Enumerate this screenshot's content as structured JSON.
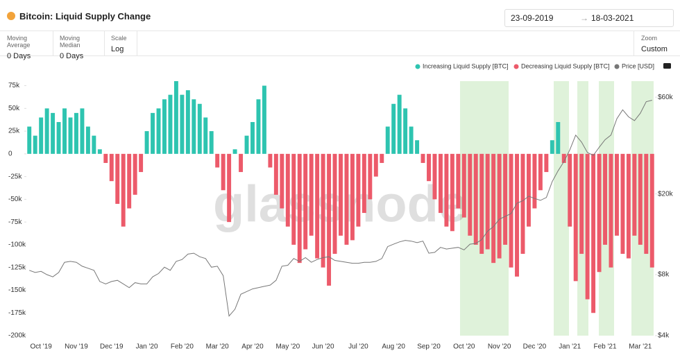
{
  "ui": {
    "title": "Bitcoin: Liquid Supply Change",
    "date_from": "23-09-2019",
    "date_to": "18-03-2021",
    "controls": [
      {
        "label": "Moving Average",
        "value": "0 Days"
      },
      {
        "label": "Moving Median",
        "value": "0 Days"
      },
      {
        "label": "Scale",
        "value": "Log"
      },
      {
        "label": "Zoom",
        "value": "Custom"
      }
    ],
    "watermark": "glassnode"
  },
  "chart_data": {
    "type": "bar",
    "categories": [
      null,
      null,
      "Oct '19",
      null,
      null,
      null,
      null,
      null,
      "Nov '19",
      null,
      null,
      null,
      null,
      null,
      "Dec '19",
      null,
      null,
      null,
      null,
      null,
      "Jan '20",
      null,
      null,
      null,
      null,
      null,
      "Feb '20",
      null,
      null,
      null,
      null,
      null,
      "Mar '20",
      null,
      null,
      null,
      null,
      null,
      "Apr '20",
      null,
      null,
      null,
      null,
      null,
      "May '20",
      null,
      null,
      null,
      null,
      null,
      "Jun '20",
      null,
      null,
      null,
      null,
      null,
      "Jul '20",
      null,
      null,
      null,
      null,
      null,
      "Aug '20",
      null,
      null,
      null,
      null,
      null,
      "Sep '20",
      null,
      null,
      null,
      null,
      null,
      "Oct '20",
      null,
      null,
      null,
      null,
      null,
      "Nov '20",
      null,
      null,
      null,
      null,
      null,
      "Dec '20",
      null,
      null,
      null,
      null,
      null,
      "Jan '21",
      null,
      null,
      null,
      null,
      null,
      "Feb '21",
      null,
      null,
      null,
      null,
      null,
      "Mar '21",
      null,
      null
    ],
    "series": [
      {
        "name": "Increasing Liquid Supply [BTC]",
        "color": "#2ec4b0",
        "values": [
          30000,
          20000,
          40000,
          50000,
          45000,
          35000,
          50000,
          40000,
          45000,
          50000,
          30000,
          20000,
          5000,
          null,
          null,
          null,
          null,
          null,
          null,
          null,
          25000,
          45000,
          50000,
          60000,
          65000,
          80000,
          65000,
          70000,
          60000,
          55000,
          40000,
          25000,
          null,
          null,
          null,
          5000,
          null,
          20000,
          35000,
          60000,
          75000,
          null,
          null,
          null,
          null,
          null,
          null,
          null,
          null,
          null,
          null,
          null,
          null,
          null,
          null,
          null,
          null,
          null,
          null,
          null,
          null,
          30000,
          55000,
          65000,
          50000,
          30000,
          15000,
          null,
          null,
          null,
          null,
          null,
          null,
          null,
          null,
          null,
          null,
          null,
          null,
          null,
          null,
          null,
          null,
          null,
          null,
          null,
          null,
          null,
          null,
          15000,
          35000,
          null,
          null,
          null,
          null,
          null,
          null,
          null,
          null,
          null,
          null,
          null,
          null,
          null,
          null,
          null,
          null
        ]
      },
      {
        "name": "Decreasing Liquid Supply [BTC]",
        "color": "#ec5a6a",
        "values": [
          null,
          null,
          null,
          null,
          null,
          null,
          null,
          null,
          null,
          null,
          null,
          null,
          null,
          -10000,
          -30000,
          -55000,
          -80000,
          -60000,
          -45000,
          -20000,
          null,
          null,
          null,
          null,
          null,
          null,
          null,
          null,
          null,
          null,
          null,
          null,
          -15000,
          -40000,
          -75000,
          null,
          -20000,
          null,
          null,
          null,
          null,
          -15000,
          -45000,
          -60000,
          -80000,
          -100000,
          -120000,
          -105000,
          -90000,
          -115000,
          -125000,
          -145000,
          -110000,
          -90000,
          -100000,
          -95000,
          -80000,
          -65000,
          -50000,
          -25000,
          -10000,
          null,
          null,
          null,
          null,
          null,
          null,
          -10000,
          -30000,
          -50000,
          -65000,
          -80000,
          -85000,
          -60000,
          -70000,
          -90000,
          -100000,
          -110000,
          -105000,
          -120000,
          -115000,
          -100000,
          -125000,
          -135000,
          -110000,
          -80000,
          -60000,
          -40000,
          -20000,
          null,
          null,
          -10000,
          -80000,
          -140000,
          -110000,
          -160000,
          -175000,
          -130000,
          -100000,
          -125000,
          -90000,
          -110000,
          -115000,
          -90000,
          -100000,
          -110000,
          -125000
        ]
      },
      {
        "name": "Price [USD]",
        "color": "#777777",
        "axis": "y2",
        "values": [
          8400,
          8200,
          8300,
          8000,
          7800,
          8200,
          9200,
          9300,
          9200,
          8800,
          8600,
          8400,
          7400,
          7200,
          7400,
          7500,
          7200,
          6900,
          7300,
          7200,
          7200,
          7800,
          8100,
          8700,
          8400,
          9300,
          9500,
          10100,
          10200,
          9800,
          9600,
          8700,
          8800,
          7900,
          5000,
          5400,
          6400,
          6600,
          6800,
          6900,
          7000,
          7100,
          7500,
          8800,
          8900,
          9600,
          9300,
          9700,
          9200,
          9500,
          9700,
          9800,
          9400,
          9300,
          9200,
          9100,
          9100,
          9200,
          9200,
          9300,
          9600,
          11000,
          11300,
          11600,
          11800,
          11700,
          11500,
          11700,
          10200,
          10300,
          10900,
          10700,
          10800,
          10900,
          10600,
          11300,
          11400,
          11900,
          13100,
          13800,
          15000,
          15500,
          16000,
          18000,
          18500,
          19500,
          19000,
          18600,
          19200,
          23000,
          26000,
          28900,
          33000,
          39000,
          36000,
          32000,
          31000,
          34000,
          37000,
          39000,
          47000,
          52000,
          48000,
          46000,
          50000,
          57000,
          58000
        ]
      }
    ],
    "ylim": [
      -200000,
      80000
    ],
    "yticks": [
      {
        "value": -200000,
        "label": "-200k"
      },
      {
        "value": -175000,
        "label": "-175k"
      },
      {
        "value": -150000,
        "label": "-150k"
      },
      {
        "value": -125000,
        "label": "-125k"
      },
      {
        "value": -100000,
        "label": "-100k"
      },
      {
        "value": -75000,
        "label": "-75k"
      },
      {
        "value": -50000,
        "label": "-50k"
      },
      {
        "value": -25000,
        "label": "-25k"
      },
      0,
      {
        "value": 25000,
        "label": "25k"
      },
      {
        "value": 50000,
        "label": "50k"
      },
      {
        "value": 75000,
        "label": "75k"
      }
    ],
    "y2lim": [
      4000,
      72000
    ],
    "y2scale": "log",
    "y2ticks": [
      {
        "value": 4000,
        "label": "$4k"
      },
      {
        "value": 8000,
        "label": "$8k"
      },
      {
        "value": 20000,
        "label": "$20k"
      },
      {
        "value": 60000,
        "label": "$60k"
      }
    ]
  }
}
